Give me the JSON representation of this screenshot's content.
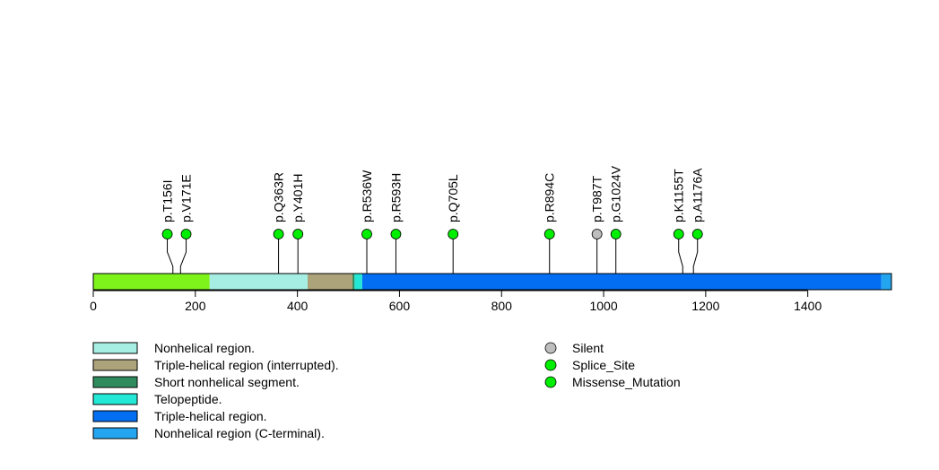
{
  "chart_data": {
    "type": "lollipop",
    "title": "",
    "protein_length": 1564,
    "xlim": [
      0,
      1564
    ],
    "x_ticks": [
      0,
      200,
      400,
      600,
      800,
      1000,
      1200,
      1400
    ],
    "x_tick_labels": [
      "0",
      "200",
      "400",
      "600",
      "800",
      "1000",
      "1200",
      "1400"
    ],
    "domains": [
      {
        "name": "N-terminal segment",
        "start": 0,
        "end": 228,
        "color": "#7ef21b",
        "in_legend": false
      },
      {
        "name": "Nonhelical region.",
        "start": 228,
        "end": 420,
        "color": "#a6eee3",
        "in_legend": true
      },
      {
        "name": "Triple-helical region (interrupted).",
        "start": 420,
        "end": 508,
        "color": "#ada37b",
        "in_legend": true
      },
      {
        "name": "Short nonhelical segment.",
        "start": 508,
        "end": 512,
        "color": "#2f8b5c",
        "in_legend": true
      },
      {
        "name": "Telopeptide.",
        "start": 512,
        "end": 527,
        "color": "#23e8d5",
        "in_legend": true
      },
      {
        "name": "Triple-helical region.",
        "start": 527,
        "end": 1544,
        "color": "#036ef1",
        "in_legend": true
      },
      {
        "name": "Nonhelical region (C-terminal).",
        "start": 1544,
        "end": 1564,
        "color": "#23a5f0",
        "in_legend": true
      }
    ],
    "mutations": [
      {
        "label": "p.T156I",
        "position": 156,
        "type": "Missense_Mutation"
      },
      {
        "label": "p.V171E",
        "position": 171,
        "type": "Missense_Mutation"
      },
      {
        "label": "p.Q363R",
        "position": 363,
        "type": "Missense_Mutation"
      },
      {
        "label": "p.Y401H",
        "position": 401,
        "type": "Missense_Mutation"
      },
      {
        "label": "p.R536W",
        "position": 536,
        "type": "Missense_Mutation"
      },
      {
        "label": "p.R593H",
        "position": 593,
        "type": "Missense_Mutation"
      },
      {
        "label": "p.Q705L",
        "position": 705,
        "type": "Missense_Mutation"
      },
      {
        "label": "p.R894C",
        "position": 894,
        "type": "Missense_Mutation"
      },
      {
        "label": "p.T987T",
        "position": 987,
        "type": "Silent"
      },
      {
        "label": "p.G1024V",
        "position": 1024,
        "type": "Missense_Mutation"
      },
      {
        "label": "p.K1155T",
        "position": 1155,
        "type": "Missense_Mutation"
      },
      {
        "label": "p.A1176A",
        "position": 1176,
        "type": "Missense_Mutation"
      }
    ],
    "mutation_legend": [
      {
        "name": "Silent",
        "color": "#bebebe"
      },
      {
        "name": "Splice_Site",
        "color": "#00ee00"
      },
      {
        "name": "Missense_Mutation",
        "color": "#00ee00"
      }
    ]
  }
}
